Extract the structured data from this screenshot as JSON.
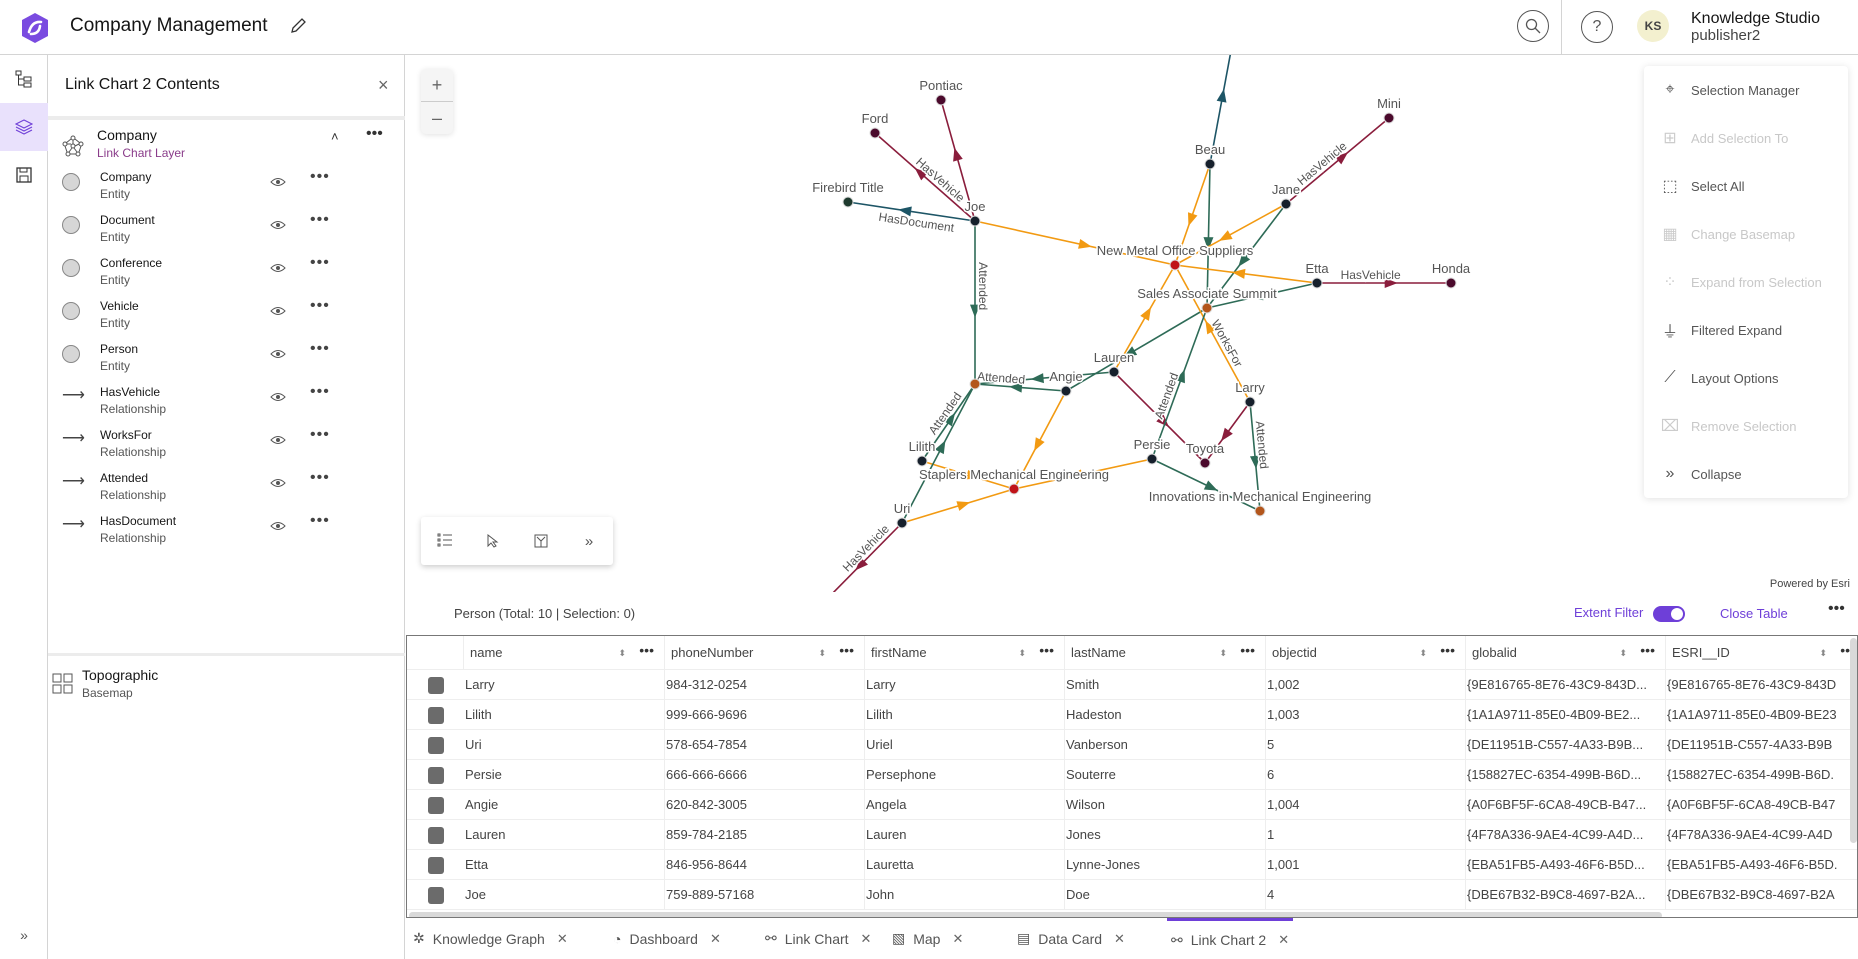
{
  "header": {
    "title": "Company Management",
    "user_initials": "KS",
    "user_name": "Knowledge Studio",
    "user_id": "publisher2",
    "accent": "#6e3fd8"
  },
  "panel": {
    "title": "Link Chart 2 Contents",
    "group": {
      "name": "Company",
      "type": "Link Chart Layer"
    },
    "layers": [
      {
        "name": "Company",
        "type": "Entity",
        "symbol": "circle"
      },
      {
        "name": "Document",
        "type": "Entity",
        "symbol": "circle"
      },
      {
        "name": "Conference",
        "type": "Entity",
        "symbol": "circle"
      },
      {
        "name": "Vehicle",
        "type": "Entity",
        "symbol": "circle"
      },
      {
        "name": "Person",
        "type": "Entity",
        "symbol": "circle"
      },
      {
        "name": "HasVehicle",
        "type": "Relationship",
        "symbol": "arrow"
      },
      {
        "name": "WorksFor",
        "type": "Relationship",
        "symbol": "arrow"
      },
      {
        "name": "Attended",
        "type": "Relationship",
        "symbol": "arrow"
      },
      {
        "name": "HasDocument",
        "type": "Relationship",
        "symbol": "arrow"
      }
    ],
    "basemap": {
      "name": "Topographic",
      "type": "Basemap"
    }
  },
  "map": {
    "powered_by": "Powered by Esri"
  },
  "menu": [
    {
      "label": "Selection Manager",
      "icon": "selection-manager-icon",
      "enabled": true
    },
    {
      "label": "Add Selection To",
      "icon": "add-selection-icon",
      "enabled": false
    },
    {
      "label": "Select All",
      "icon": "select-all-icon",
      "enabled": true
    },
    {
      "label": "Change Basemap",
      "icon": "basemap-icon",
      "enabled": false
    },
    {
      "label": "Expand from Selection",
      "icon": "expand-icon",
      "enabled": false
    },
    {
      "label": "Filtered Expand",
      "icon": "filter-icon",
      "enabled": true
    },
    {
      "label": "Layout Options",
      "icon": "layout-icon",
      "enabled": true
    },
    {
      "label": "Remove Selection",
      "icon": "remove-selection-icon",
      "enabled": false
    },
    {
      "label": "Collapse",
      "icon": "collapse-icon",
      "enabled": true
    }
  ],
  "link_chart": {
    "colors": {
      "HasVehicle": "#8a1d3c",
      "WorksFor": "#f29a12",
      "Attended": "#2e6b57",
      "HasDocument": "#1d5566",
      "Person": "#16202c",
      "Vehicle": "#4b0a2c",
      "Company": "#c01318",
      "Conference": "#b3561c",
      "Document": "#1e3a2e"
    },
    "nodes": [
      {
        "id": "pontiac",
        "label": "Pontiac",
        "type": "Vehicle"
      },
      {
        "id": "ford",
        "label": "Ford",
        "type": "Vehicle"
      },
      {
        "id": "firebird",
        "label": "Firebird Title",
        "type": "Document"
      },
      {
        "id": "joe",
        "label": "Joe",
        "type": "Person"
      },
      {
        "id": "beau",
        "label": "Beau",
        "type": "Person"
      },
      {
        "id": "nmos",
        "label": "New Metal Office Suppliers",
        "type": "Company"
      },
      {
        "id": "jane",
        "label": "Jane",
        "type": "Person"
      },
      {
        "id": "sas",
        "label": "Sales Associate Summit",
        "type": "Conference"
      },
      {
        "id": "mini",
        "label": "Mini",
        "type": "Vehicle"
      },
      {
        "id": "etta",
        "label": "Etta",
        "type": "Person"
      },
      {
        "id": "honda",
        "label": "Honda",
        "type": "Vehicle"
      },
      {
        "id": "conf1",
        "label": "",
        "type": "Conference"
      },
      {
        "id": "angie",
        "label": "Angie",
        "type": "Person"
      },
      {
        "id": "lauren",
        "label": "Lauren",
        "type": "Person"
      },
      {
        "id": "lilith",
        "label": "Lilith",
        "type": "Person"
      },
      {
        "id": "staplers",
        "label": "Staplers Mechanical Engineering",
        "type": "Company"
      },
      {
        "id": "uri",
        "label": "Uri",
        "type": "Person"
      },
      {
        "id": "persie",
        "label": "Persie",
        "type": "Person"
      },
      {
        "id": "toyota",
        "label": "Toyota",
        "type": "Vehicle"
      },
      {
        "id": "larry",
        "label": "Larry",
        "type": "Person"
      },
      {
        "id": "innov",
        "label": "Innovations in Mechanical Engineering",
        "type": "Conference"
      }
    ],
    "edges": [
      {
        "from": "joe",
        "to": "pontiac",
        "type": "HasVehicle",
        "label": ""
      },
      {
        "from": "joe",
        "to": "ford",
        "type": "HasVehicle",
        "label": "HasVehicle"
      },
      {
        "from": "joe",
        "to": "firebird",
        "type": "HasDocument",
        "label": "HasDocument"
      },
      {
        "from": "joe",
        "to": "nmos",
        "type": "WorksFor",
        "label": ""
      },
      {
        "from": "joe",
        "to": "conf1",
        "type": "Attended",
        "label": "Attended"
      },
      {
        "from": "beau",
        "to": "beau_offscreen",
        "type": "HasDocument",
        "label": ""
      },
      {
        "from": "beau",
        "to": "nmos",
        "type": "WorksFor",
        "label": ""
      },
      {
        "from": "beau",
        "to": "sas",
        "type": "Attended",
        "label": ""
      },
      {
        "from": "jane",
        "to": "mini",
        "type": "HasVehicle",
        "label": "HasVehicle"
      },
      {
        "from": "jane",
        "to": "nmos",
        "type": "WorksFor",
        "label": ""
      },
      {
        "from": "jane",
        "to": "sas",
        "type": "Attended",
        "label": ""
      },
      {
        "from": "etta",
        "to": "honda",
        "type": "HasVehicle",
        "label": "HasVehicle"
      },
      {
        "from": "etta",
        "to": "nmos",
        "type": "WorksFor",
        "label": ""
      },
      {
        "from": "etta",
        "to": "sas",
        "type": "Attended",
        "label": ""
      },
      {
        "from": "lauren",
        "to": "nmos",
        "type": "WorksFor",
        "label": ""
      },
      {
        "from": "sas",
        "to": "angie",
        "type": "Attended",
        "label": ""
      },
      {
        "from": "lauren",
        "to": "conf1",
        "type": "Attended",
        "label": ""
      },
      {
        "from": "angie",
        "to": "conf1",
        "type": "Attended",
        "label": "Attended"
      },
      {
        "from": "lauren",
        "to": "toyota",
        "type": "HasVehicle",
        "label": ""
      },
      {
        "from": "larry",
        "to": "toyota",
        "type": "HasVehicle",
        "label": ""
      },
      {
        "from": "larry",
        "to": "nmos",
        "type": "WorksFor",
        "label": "WorksFor"
      },
      {
        "from": "larry",
        "to": "innov",
        "type": "Attended",
        "label": "Attended"
      },
      {
        "from": "persie",
        "to": "sas",
        "type": "Attended",
        "label": "Attended"
      },
      {
        "from": "persie",
        "to": "innov",
        "type": "Attended",
        "label": ""
      },
      {
        "from": "persie",
        "to": "staplers",
        "type": "WorksFor",
        "label": ""
      },
      {
        "from": "angie",
        "to": "staplers",
        "type": "WorksFor",
        "label": ""
      },
      {
        "from": "lilith",
        "to": "staplers",
        "type": "WorksFor",
        "label": ""
      },
      {
        "from": "uri",
        "to": "staplers",
        "type": "WorksFor",
        "label": ""
      },
      {
        "from": "lilith",
        "to": "conf1",
        "type": "Attended",
        "label": "Attended"
      },
      {
        "from": "uri",
        "to": "conf1",
        "type": "Attended",
        "label": ""
      },
      {
        "from": "uri",
        "to": "uri_offscreen",
        "type": "HasVehicle",
        "label": "HasVehicle"
      }
    ]
  },
  "table": {
    "caption": "Person (Total: 10 | Selection: 0)",
    "extent_filter_label": "Extent Filter",
    "extent_filter_on": true,
    "close_label": "Close Table",
    "columns": [
      "name",
      "phoneNumber",
      "firstName",
      "lastName",
      "objectid",
      "globalid",
      "ESRI__ID"
    ],
    "rows": [
      [
        "Larry",
        "984-312-0254",
        "Larry",
        "Smith",
        "1,002",
        "{9E816765-8E76-43C9-843D...",
        "{9E816765-8E76-43C9-843D"
      ],
      [
        "Lilith",
        "999-666-9696",
        "Lilith",
        "Hadeston",
        "1,003",
        "{1A1A9711-85E0-4B09-BE2...",
        "{1A1A9711-85E0-4B09-BE23"
      ],
      [
        "Uri",
        "578-654-7854",
        "Uriel",
        "Vanberson",
        "5",
        "{DE11951B-C557-4A33-B9B...",
        "{DE11951B-C557-4A33-B9B"
      ],
      [
        "Persie",
        "666-666-6666",
        "Persephone",
        "Souterre",
        "6",
        "{158827EC-6354-499B-B6D...",
        "{158827EC-6354-499B-B6D."
      ],
      [
        "Angie",
        "620-842-3005",
        "Angela",
        "Wilson",
        "1,004",
        "{A0F6BF5F-6CA8-49CB-B47...",
        "{A0F6BF5F-6CA8-49CB-B47"
      ],
      [
        "Lauren",
        "859-784-2185",
        "Lauren",
        "Jones",
        "1",
        "{4F78A336-9AE4-4C99-A4D...",
        "{4F78A336-9AE4-4C99-A4D"
      ],
      [
        "Etta",
        "846-956-8644",
        "Lauretta",
        "Lynne-Jones",
        "1,001",
        "{EBA51FB5-A493-46F6-B5D...",
        "{EBA51FB5-A493-46F6-B5D."
      ],
      [
        "Joe",
        "759-889-57168",
        "John",
        "Doe",
        "4",
        "{DBE67B32-B9C8-4697-B2A...",
        "{DBE67B32-B9C8-4697-B2A"
      ]
    ]
  },
  "tabs": [
    {
      "label": "Knowledge Graph",
      "icon": "knowledge-graph-icon",
      "active": false
    },
    {
      "label": "Dashboard",
      "icon": "dashboard-icon",
      "active": false
    },
    {
      "label": "Link Chart",
      "icon": "link-chart-icon",
      "active": false
    },
    {
      "label": "Map",
      "icon": "map-icon",
      "active": false
    },
    {
      "label": "Data Card",
      "icon": "data-card-icon",
      "active": false
    },
    {
      "label": "Link Chart 2",
      "icon": "link-chart-icon",
      "active": true
    }
  ]
}
